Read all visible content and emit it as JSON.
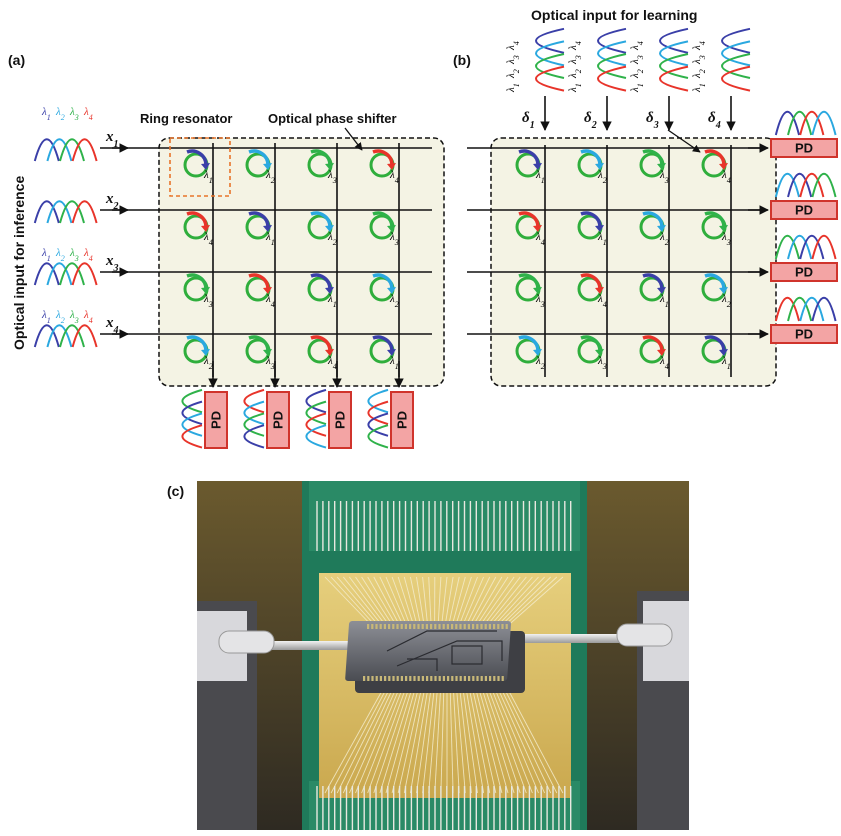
{
  "panel_a": {
    "label": "(a)",
    "side_label": "Optical input for inference",
    "ring_label": "Ring resonator",
    "shifter_label": "Optical phase shifter",
    "inputs": [
      "x1",
      "x2",
      "x3",
      "x4"
    ],
    "pd_label": "PD",
    "ring_matrix": [
      [
        1,
        2,
        3,
        4
      ],
      [
        4,
        1,
        2,
        3
      ],
      [
        3,
        4,
        1,
        2
      ],
      [
        2,
        3,
        4,
        1
      ]
    ]
  },
  "panel_b": {
    "label": "(b)",
    "top_label": "Optical input for learning",
    "deltas": [
      "δ1",
      "δ2",
      "δ3",
      "δ4"
    ],
    "pd_label": "PD",
    "ring_matrix": [
      [
        1,
        2,
        3,
        4
      ],
      [
        4,
        1,
        2,
        3
      ],
      [
        3,
        4,
        1,
        2
      ],
      [
        2,
        3,
        4,
        1
      ]
    ]
  },
  "panel_c": {
    "label": "(c)",
    "description_icon": "chip-photo"
  },
  "wavelengths": {
    "lambda_prefix": "λ",
    "indices": [
      "1",
      "2",
      "3",
      "4"
    ]
  },
  "colors": {
    "lambda1": "#3a3fa8",
    "lambda2": "#2aa8e0",
    "lambda3": "#2fb24a",
    "lambda4": "#e8342a",
    "ring": "#2fae3c",
    "pd_fill": "#f3a4a4",
    "pd_stroke": "#d0342c",
    "grid_bg": "#f4f3e4",
    "dash_red": "#e8742a"
  }
}
